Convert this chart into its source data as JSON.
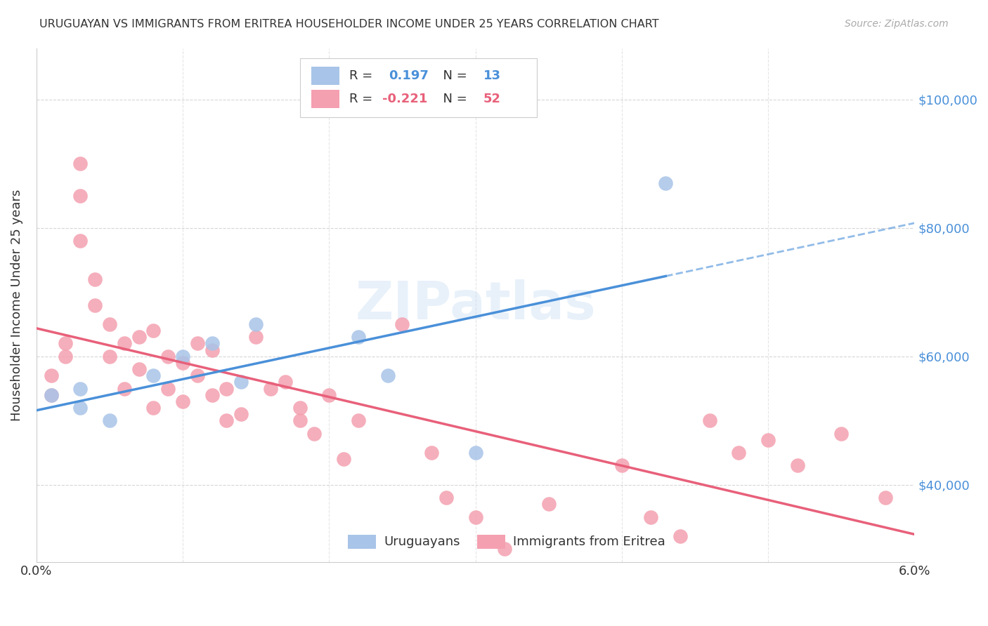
{
  "title": "URUGUAYAN VS IMMIGRANTS FROM ERITREA HOUSEHOLDER INCOME UNDER 25 YEARS CORRELATION CHART",
  "source": "Source: ZipAtlas.com",
  "ylabel": "Householder Income Under 25 years",
  "ytick_labels": [
    "$40,000",
    "$60,000",
    "$80,000",
    "$100,000"
  ],
  "ytick_values": [
    40000,
    60000,
    80000,
    100000
  ],
  "r_uruguayan": 0.197,
  "n_uruguayan": 13,
  "r_eritrea": -0.221,
  "n_eritrea": 52,
  "watermark": "ZIPatlas",
  "blue_color": "#a8c4e8",
  "blue_dark": "#4a90d9",
  "pink_color": "#f4a0b0",
  "pink_dark": "#e8607a",
  "uruguayan_x": [
    0.001,
    0.003,
    0.003,
    0.005,
    0.008,
    0.01,
    0.012,
    0.014,
    0.015,
    0.022,
    0.024,
    0.03,
    0.043
  ],
  "uruguayan_y": [
    54000,
    52000,
    55000,
    50000,
    57000,
    60000,
    62000,
    56000,
    65000,
    63000,
    57000,
    45000,
    87000
  ],
  "eritrea_x": [
    0.001,
    0.001,
    0.002,
    0.002,
    0.003,
    0.003,
    0.003,
    0.004,
    0.004,
    0.005,
    0.005,
    0.006,
    0.006,
    0.007,
    0.007,
    0.008,
    0.008,
    0.009,
    0.009,
    0.01,
    0.01,
    0.011,
    0.011,
    0.012,
    0.012,
    0.013,
    0.013,
    0.014,
    0.015,
    0.016,
    0.017,
    0.018,
    0.018,
    0.019,
    0.02,
    0.021,
    0.022,
    0.025,
    0.027,
    0.028,
    0.03,
    0.032,
    0.035,
    0.04,
    0.042,
    0.044,
    0.046,
    0.048,
    0.05,
    0.052,
    0.055,
    0.058
  ],
  "eritrea_y": [
    54000,
    57000,
    62000,
    60000,
    90000,
    85000,
    78000,
    72000,
    68000,
    65000,
    60000,
    62000,
    55000,
    63000,
    58000,
    64000,
    52000,
    60000,
    55000,
    59000,
    53000,
    62000,
    57000,
    61000,
    54000,
    55000,
    50000,
    51000,
    63000,
    55000,
    56000,
    50000,
    52000,
    48000,
    54000,
    44000,
    50000,
    65000,
    45000,
    38000,
    35000,
    30000,
    37000,
    43000,
    35000,
    32000,
    50000,
    45000,
    47000,
    43000,
    48000,
    38000
  ]
}
